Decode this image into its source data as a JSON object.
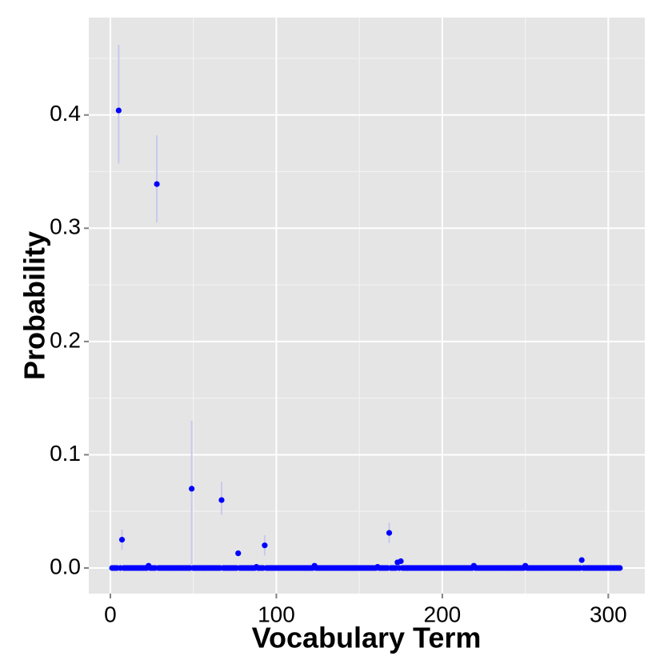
{
  "chart_data": {
    "type": "scatter",
    "x_label": "Vocabulary Term",
    "y_label": "Probability",
    "xlim": [
      -13,
      322
    ],
    "ylim": [
      -0.0226,
      0.486
    ],
    "xticks": [
      0,
      100,
      200,
      300
    ],
    "yticks": [
      {
        "value": 0,
        "label": "0.0"
      },
      0.1,
      0.2,
      0.3,
      0.4
    ],
    "grid": true,
    "color": "#0000ff",
    "error_color": "#c8c8f0",
    "x": [
      1,
      2,
      3,
      4,
      5,
      6,
      7,
      8,
      9,
      10,
      11,
      12,
      13,
      14,
      15,
      16,
      17,
      18,
      19,
      20,
      21,
      22,
      23,
      24,
      25,
      26,
      27,
      28,
      29,
      30,
      31,
      32,
      33,
      34,
      35,
      36,
      37,
      38,
      39,
      40,
      41,
      42,
      43,
      44,
      45,
      46,
      47,
      48,
      49,
      50,
      51,
      52,
      53,
      54,
      55,
      56,
      57,
      58,
      59,
      60,
      61,
      62,
      63,
      64,
      65,
      66,
      67,
      68,
      69,
      70,
      71,
      72,
      73,
      74,
      75,
      76,
      77,
      78,
      79,
      80,
      81,
      82,
      83,
      84,
      85,
      86,
      87,
      88,
      89,
      90,
      91,
      92,
      93,
      94,
      95,
      96,
      97,
      98,
      99,
      100,
      101,
      102,
      103,
      104,
      105,
      106,
      107,
      108,
      109,
      110,
      111,
      112,
      113,
      114,
      115,
      116,
      117,
      118,
      119,
      120,
      121,
      122,
      123,
      124,
      125,
      126,
      127,
      128,
      129,
      130,
      131,
      132,
      133,
      134,
      135,
      136,
      137,
      138,
      139,
      140,
      141,
      142,
      143,
      144,
      145,
      146,
      147,
      148,
      149,
      150,
      151,
      152,
      153,
      154,
      155,
      156,
      157,
      158,
      159,
      160,
      161,
      162,
      163,
      164,
      165,
      166,
      167,
      168,
      169,
      170,
      171,
      172,
      173,
      174,
      175,
      176,
      177,
      178,
      179,
      180,
      181,
      182,
      183,
      184,
      185,
      186,
      187,
      188,
      189,
      190,
      191,
      192,
      193,
      194,
      195,
      196,
      197,
      198,
      199,
      200,
      201,
      202,
      203,
      204,
      205,
      206,
      207,
      208,
      209,
      210,
      211,
      212,
      213,
      214,
      215,
      216,
      217,
      218,
      219,
      220,
      221,
      222,
      223,
      224,
      225,
      226,
      227,
      228,
      229,
      230,
      231,
      232,
      233,
      234,
      235,
      236,
      237,
      238,
      239,
      240,
      241,
      242,
      243,
      244,
      245,
      246,
      247,
      248,
      249,
      250,
      251,
      252,
      253,
      254,
      255,
      256,
      257,
      258,
      259,
      260,
      261,
      262,
      263,
      264,
      265,
      266,
      267,
      268,
      269,
      270,
      271,
      272,
      273,
      274,
      275,
      276,
      277,
      278,
      279,
      280,
      281,
      282,
      283,
      284,
      285,
      286,
      287,
      288,
      289,
      290,
      291,
      292,
      293,
      294,
      295,
      296,
      297,
      298,
      299,
      300,
      301,
      302,
      303,
      304,
      305,
      306,
      307
    ],
    "values": [
      0,
      0,
      0,
      0,
      0.404,
      0,
      0.025,
      0,
      0,
      0,
      0,
      0,
      0,
      0,
      0,
      0,
      0,
      0,
      0,
      0,
      0,
      0,
      0.002,
      0,
      0,
      0,
      0,
      0.339,
      0,
      0,
      0,
      0,
      0,
      0,
      0,
      0,
      0,
      0,
      0,
      0,
      0,
      0,
      0,
      0,
      0,
      0,
      0,
      0,
      0.07,
      0,
      0,
      0,
      0,
      0,
      0,
      0,
      0,
      0,
      0,
      0,
      0,
      0,
      0,
      0,
      0,
      0,
      0.06,
      0,
      0,
      0,
      0,
      0,
      0,
      0,
      0,
      0,
      0.013,
      0,
      0,
      0,
      0,
      0,
      0,
      0,
      0,
      0,
      0,
      0.001,
      0,
      0,
      0,
      0,
      0.02,
      0,
      0,
      0,
      0,
      0,
      0,
      0,
      0,
      0,
      0,
      0,
      0,
      0,
      0,
      0,
      0,
      0,
      0,
      0,
      0,
      0,
      0,
      0,
      0,
      0,
      0,
      0,
      0,
      0,
      0.002,
      0,
      0,
      0,
      0,
      0,
      0,
      0,
      0,
      0,
      0,
      0,
      0,
      0,
      0,
      0,
      0,
      0,
      0,
      0,
      0,
      0,
      0,
      0,
      0,
      0,
      0,
      0,
      0,
      0,
      0,
      0,
      0,
      0,
      0,
      0,
      0,
      0,
      0.001,
      0,
      0,
      0,
      0,
      0,
      0,
      0.031,
      0,
      0,
      0,
      0,
      0.005,
      0,
      0.006,
      0,
      0,
      0,
      0,
      0,
      0,
      0,
      0,
      0,
      0,
      0,
      0,
      0,
      0,
      0,
      0,
      0,
      0,
      0,
      0,
      0,
      0,
      0,
      0,
      0,
      0,
      0,
      0,
      0,
      0,
      0,
      0,
      0,
      0,
      0,
      0,
      0,
      0,
      0,
      0,
      0,
      0,
      0,
      0.002,
      0,
      0,
      0,
      0,
      0,
      0,
      0,
      0,
      0,
      0,
      0,
      0,
      0,
      0,
      0,
      0,
      0,
      0,
      0,
      0,
      0,
      0,
      0,
      0,
      0,
      0,
      0,
      0,
      0,
      0,
      0.002,
      0,
      0,
      0,
      0,
      0,
      0,
      0,
      0,
      0,
      0,
      0,
      0,
      0,
      0,
      0,
      0,
      0,
      0,
      0,
      0,
      0,
      0,
      0,
      0,
      0,
      0,
      0,
      0,
      0,
      0,
      0,
      0,
      0,
      0.007,
      0,
      0,
      0,
      0,
      0,
      0,
      0,
      0,
      0,
      0,
      0,
      0,
      0,
      0,
      0,
      0,
      0,
      0,
      0,
      0,
      0,
      0,
      0
    ],
    "errors": {
      "x": [
        5,
        7,
        28,
        49,
        67,
        93,
        168
      ],
      "low": [
        0.357,
        0.016,
        0.305,
        0.003,
        0.047,
        0.011,
        0.022
      ],
      "high": [
        0.462,
        0.034,
        0.382,
        0.13,
        0.076,
        0.029,
        0.04
      ]
    }
  }
}
